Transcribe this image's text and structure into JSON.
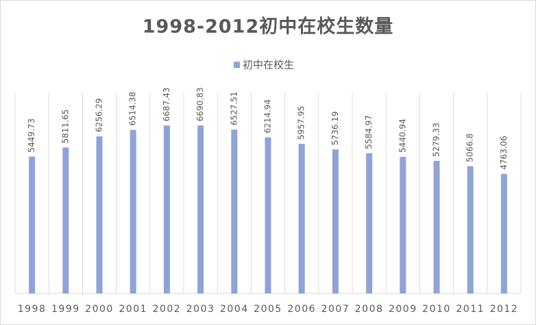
{
  "chart_data": {
    "type": "bar",
    "title": "1998-2012初中在校生数量",
    "categories": [
      "1998",
      "1999",
      "2000",
      "2001",
      "2002",
      "2003",
      "2004",
      "2005",
      "2006",
      "2007",
      "2008",
      "2009",
      "2010",
      "2011",
      "2012"
    ],
    "series": [
      {
        "name": "初中在校生",
        "color": "#8fa3d9",
        "values": [
          5449.73,
          5811.65,
          6256.29,
          6514.38,
          6687.43,
          6690.83,
          6527.51,
          6214.94,
          5957.95,
          5736.19,
          5584.97,
          5440.94,
          5279.33,
          5066.8,
          4763.06
        ]
      }
    ],
    "ylim": [
      0,
      8000
    ],
    "legend": "top"
  }
}
